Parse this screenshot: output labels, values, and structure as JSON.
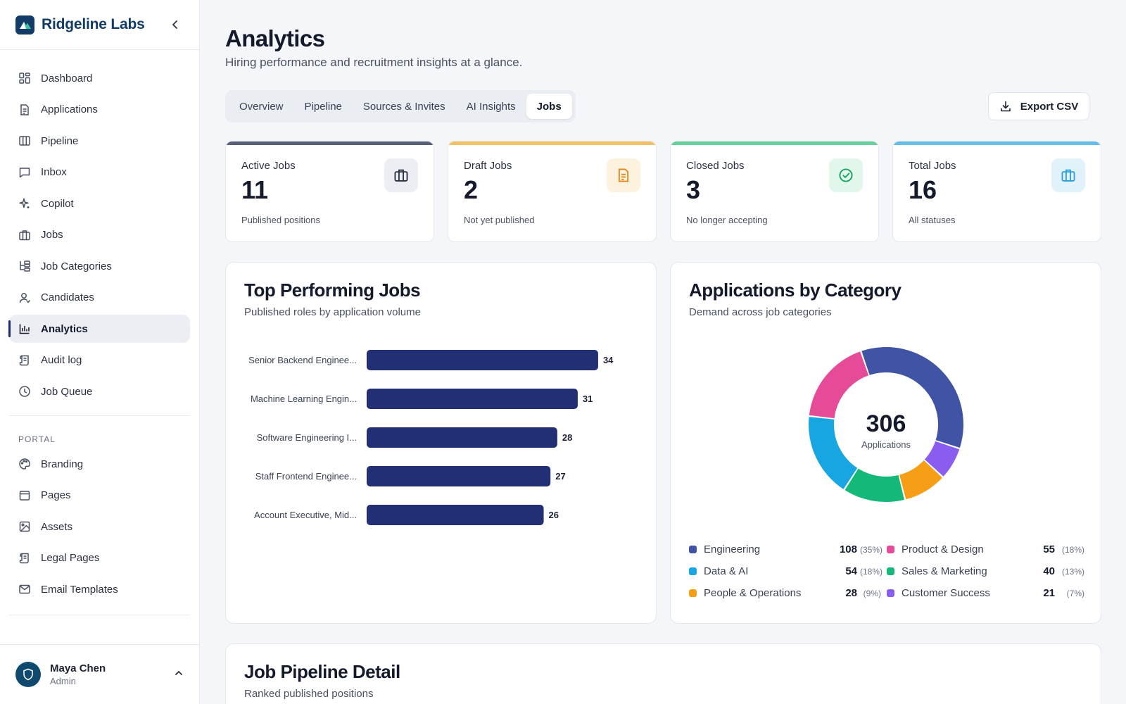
{
  "brand": {
    "name": "Ridgeline Labs"
  },
  "sidebar": {
    "items": [
      {
        "label": "Dashboard",
        "icon": "dashboard-icon"
      },
      {
        "label": "Applications",
        "icon": "document-icon"
      },
      {
        "label": "Pipeline",
        "icon": "columns-icon"
      },
      {
        "label": "Inbox",
        "icon": "message-icon"
      },
      {
        "label": "Copilot",
        "icon": "sparkle-icon"
      },
      {
        "label": "Jobs",
        "icon": "briefcase-icon"
      },
      {
        "label": "Job Categories",
        "icon": "tree-icon"
      },
      {
        "label": "Candidates",
        "icon": "user-icon"
      },
      {
        "label": "Analytics",
        "icon": "bar-chart-icon",
        "active": true
      },
      {
        "label": "Audit log",
        "icon": "scroll-icon"
      },
      {
        "label": "Job Queue",
        "icon": "clock-icon"
      }
    ],
    "portal_label": "PORTAL",
    "portal_items": [
      {
        "label": "Branding",
        "icon": "palette-icon"
      },
      {
        "label": "Pages",
        "icon": "page-icon"
      },
      {
        "label": "Assets",
        "icon": "image-icon"
      },
      {
        "label": "Legal Pages",
        "icon": "scroll-icon"
      },
      {
        "label": "Email Templates",
        "icon": "mail-icon"
      }
    ]
  },
  "user": {
    "name": "Maya Chen",
    "role": "Admin"
  },
  "header": {
    "title": "Analytics",
    "subtitle": "Hiring performance and recruitment insights at a glance."
  },
  "tabs": [
    {
      "label": "Overview"
    },
    {
      "label": "Pipeline"
    },
    {
      "label": "Sources & Invites"
    },
    {
      "label": "AI Insights"
    },
    {
      "label": "Jobs",
      "active": true
    }
  ],
  "export_label": "Export CSV",
  "stats": [
    {
      "label": "Active Jobs",
      "value": "11",
      "sub": "Published positions",
      "color": "#5a5f78",
      "icon": "briefcase-icon",
      "icon_bg": "#eceef3",
      "icon_color": "#2b3142"
    },
    {
      "label": "Draft Jobs",
      "value": "2",
      "sub": "Not yet published",
      "color": "#f5c163",
      "icon": "document-icon",
      "icon_bg": "#fdf2de",
      "icon_color": "#e0881a"
    },
    {
      "label": "Closed Jobs",
      "value": "3",
      "sub": "No longer accepting",
      "color": "#66cf9e",
      "icon": "check-circle-icon",
      "icon_bg": "#e2f6ec",
      "icon_color": "#1aa564"
    },
    {
      "label": "Total Jobs",
      "value": "16",
      "sub": "All statuses",
      "color": "#66bde6",
      "icon": "briefcase-icon",
      "icon_bg": "#e2f2fa",
      "icon_color": "#2a9fd6"
    }
  ],
  "top_jobs": {
    "title": "Top Performing Jobs",
    "subtitle": "Published roles by application volume"
  },
  "category": {
    "title": "Applications by Category",
    "subtitle": "Demand across job categories",
    "center_value": "306",
    "center_label": "Applications"
  },
  "pipeline_detail": {
    "title": "Job Pipeline Detail",
    "subtitle": "Ranked published positions"
  },
  "chart_data": [
    {
      "type": "bar",
      "orientation": "horizontal",
      "categories": [
        "Senior Backend Enginee...",
        "Machine Learning Engin...",
        "Software Engineering I...",
        "Staff Frontend Enginee...",
        "Account Executive, Mid..."
      ],
      "values": [
        34,
        31,
        28,
        27,
        26
      ],
      "xlim": [
        0,
        40
      ],
      "bar_color": "#232f75",
      "grid": false
    },
    {
      "type": "pie",
      "donut": true,
      "total": 306,
      "slices": [
        {
          "name": "Engineering",
          "value": 108,
          "pct": "(35%)",
          "color": "#4053a5"
        },
        {
          "name": "Product & Design",
          "value": 55,
          "pct": "(18%)",
          "color": "#e54b98"
        },
        {
          "name": "Data & AI",
          "value": 54,
          "pct": "(18%)",
          "color": "#18a6e3"
        },
        {
          "name": "Sales & Marketing",
          "value": 40,
          "pct": "(13%)",
          "color": "#14b97a"
        },
        {
          "name": "People & Operations",
          "value": 28,
          "pct": "(9%)",
          "color": "#f59e16"
        },
        {
          "name": "Customer Success",
          "value": 21,
          "pct": "(7%)",
          "color": "#8b5cf0"
        }
      ],
      "draw_order": [
        "Engineering",
        "Customer Success",
        "People & Operations",
        "Sales & Marketing",
        "Data & AI",
        "Product & Design"
      ],
      "legend": "bottom"
    }
  ]
}
